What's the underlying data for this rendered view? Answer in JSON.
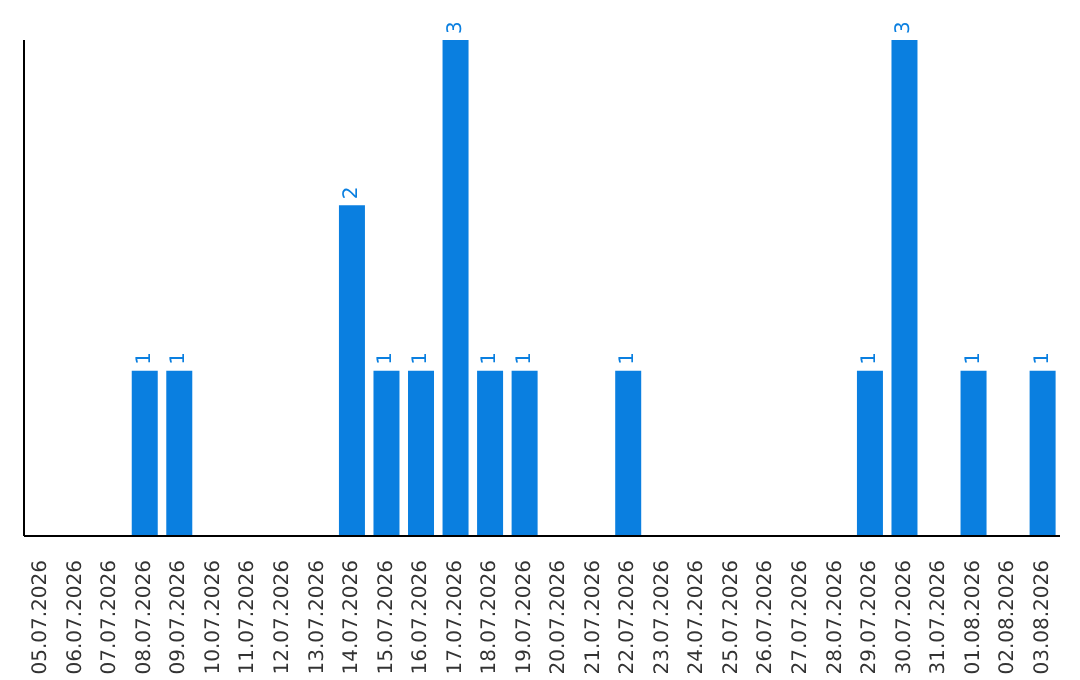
{
  "chart_data": {
    "type": "bar",
    "categories": [
      "05.07.2026",
      "06.07.2026",
      "07.07.2026",
      "08.07.2026",
      "09.07.2026",
      "10.07.2026",
      "11.07.2026",
      "12.07.2026",
      "13.07.2026",
      "14.07.2026",
      "15.07.2026",
      "16.07.2026",
      "17.07.2026",
      "18.07.2026",
      "19.07.2026",
      "20.07.2026",
      "21.07.2026",
      "22.07.2026",
      "23.07.2026",
      "24.07.2026",
      "25.07.2026",
      "26.07.2026",
      "27.07.2026",
      "28.07.2026",
      "29.07.2026",
      "30.07.2026",
      "31.07.2026",
      "01.08.2026",
      "02.08.2026",
      "03.08.2026"
    ],
    "values": [
      0,
      0,
      0,
      1,
      1,
      0,
      0,
      0,
      0,
      2,
      1,
      1,
      3,
      1,
      1,
      0,
      0,
      1,
      0,
      0,
      0,
      0,
      0,
      0,
      1,
      3,
      0,
      1,
      0,
      1
    ],
    "value_labels": [
      null,
      null,
      null,
      "1",
      "1",
      null,
      null,
      null,
      null,
      "2",
      "1",
      "1",
      "3",
      "1",
      "1",
      null,
      null,
      "1",
      null,
      null,
      null,
      null,
      null,
      null,
      "1",
      "3",
      null,
      "1",
      null,
      "1"
    ],
    "color": "#0a7fe0",
    "tick_labels": "x",
    "grid": false,
    "legend": false
  }
}
